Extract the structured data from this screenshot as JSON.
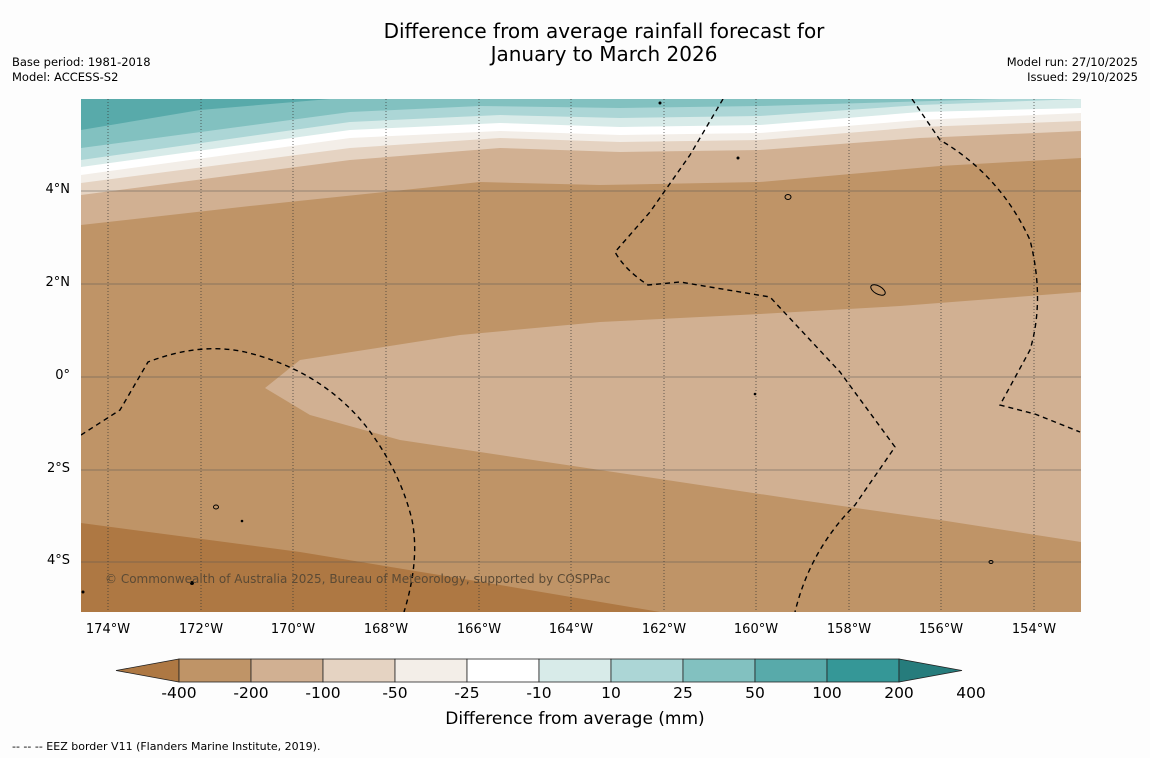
{
  "header": {
    "title_line1": "Difference from average rainfall forecast for",
    "title_line2": "January to March 2026",
    "base_period": "Base period: 1981-2018",
    "model": "Model: ACCESS-S2",
    "model_run": "Model run: 27/10/2025",
    "issued": "Issued: 29/10/2025"
  },
  "map": {
    "lat_labels": [
      "4°N",
      "2°N",
      "0°",
      "2°S",
      "4°S"
    ],
    "lon_labels": [
      "174°W",
      "172°W",
      "170°W",
      "168°W",
      "166°W",
      "164°W",
      "162°W",
      "160°W",
      "158°W",
      "156°W",
      "154°W"
    ],
    "copyright": "© Commonwealth of Australia 2025, Bureau of Meteorology, supported by COSPPac"
  },
  "legend": {
    "ticks": [
      "-400",
      "-200",
      "-100",
      "-50",
      "-25",
      "-10",
      "10",
      "25",
      "50",
      "100",
      "200",
      "400"
    ],
    "colors": [
      "#ae7843",
      "#bf9467",
      "#d1b092",
      "#e5d3c2",
      "#f3eee8",
      "#ffffff",
      "#d8ebe9",
      "#acd6d6",
      "#82c1c0",
      "#58aaaa",
      "#359797",
      "#267c7c"
    ],
    "title": "Difference from average (mm)"
  },
  "footer": {
    "eez_note": "--  --  -- EEZ border V11 (Flanders Marine Institute, 2019)."
  }
}
